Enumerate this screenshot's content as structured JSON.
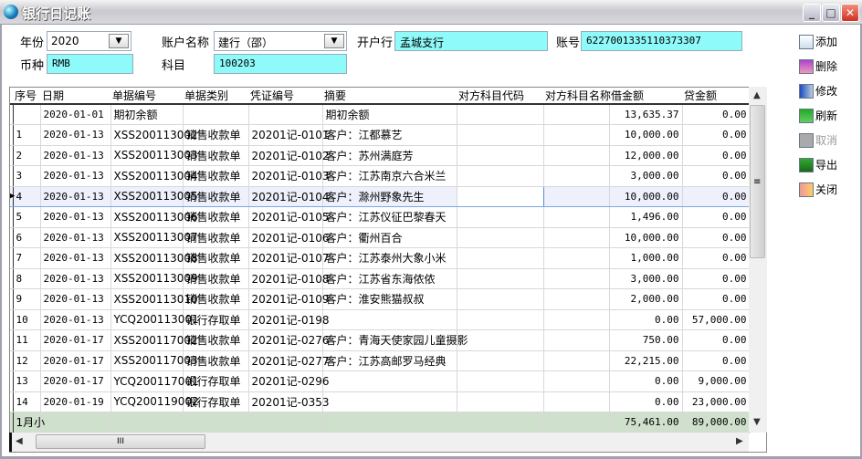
{
  "window": {
    "title": "银行日记账",
    "min_icon": "minimize-icon",
    "max_icon": "maximize-icon",
    "close_icon": "close-icon"
  },
  "form": {
    "year_label": "年份",
    "year_value": "2020",
    "account_name_label": "账户名称",
    "account_name_value": "建行（邵）",
    "bank_label": "开户行",
    "bank_value": "孟城支行",
    "account_no_label": "账号",
    "account_no_value": "6227001335110373307",
    "currency_label": "币种",
    "currency_value": "RMB",
    "subject_label": "科目",
    "subject_value": "100203"
  },
  "toolbar": [
    {
      "label": "添加",
      "icon": "document-add-icon",
      "enabled": true
    },
    {
      "label": "删除",
      "icon": "delete-hand-icon",
      "enabled": true
    },
    {
      "label": "修改",
      "icon": "edit-icon",
      "enabled": true
    },
    {
      "label": "刷新",
      "icon": "refresh-icon",
      "enabled": true
    },
    {
      "label": "取消",
      "icon": "cancel-icon",
      "enabled": false
    },
    {
      "label": "导出",
      "icon": "excel-export-icon",
      "enabled": true
    },
    {
      "label": "关闭",
      "icon": "exit-door-icon",
      "enabled": true
    }
  ],
  "grid": {
    "columns": [
      "序号",
      "日期",
      "单据编号",
      "单据类别",
      "凭证编号",
      "摘要",
      "对方科目代码",
      "对方科目名称",
      "借金额",
      "贷金额"
    ],
    "rows": [
      [
        "",
        "2020-01-01",
        "期初余额",
        "",
        "",
        "期初余额",
        "",
        "",
        "13,635.37",
        "0.00"
      ],
      [
        "1",
        "2020-01-13",
        "XSS200113002",
        "销售收款单",
        "20201记-0101",
        "客户：江都慕艺",
        "",
        "",
        "10,000.00",
        "0.00"
      ],
      [
        "2",
        "2020-01-13",
        "XSS200113003",
        "销售收款单",
        "20201记-0102",
        "客户：苏州满庭芳",
        "",
        "",
        "12,000.00",
        "0.00"
      ],
      [
        "3",
        "2020-01-13",
        "XSS200113004",
        "销售收款单",
        "20201记-0103",
        "客户：江苏南京六合米兰",
        "",
        "",
        "3,000.00",
        "0.00"
      ],
      [
        "4",
        "2020-01-13",
        "XSS200113005",
        "销售收款单",
        "20201记-0104",
        "客户：滁州野象先生",
        "",
        "",
        "10,000.00",
        "0.00"
      ],
      [
        "5",
        "2020-01-13",
        "XSS200113006",
        "销售收款单",
        "20201记-0105",
        "客户：江苏仪征巴黎春天",
        "",
        "",
        "1,496.00",
        "0.00"
      ],
      [
        "6",
        "2020-01-13",
        "XSS200113007",
        "销售收款单",
        "20201记-0106",
        "客户：衢州百合",
        "",
        "",
        "10,000.00",
        "0.00"
      ],
      [
        "7",
        "2020-01-13",
        "XSS200113008",
        "销售收款单",
        "20201记-0107",
        "客户：江苏泰州大象小米",
        "",
        "",
        "1,000.00",
        "0.00"
      ],
      [
        "8",
        "2020-01-13",
        "XSS200113009",
        "销售收款单",
        "20201记-0108",
        "客户：江苏省东海侬侬",
        "",
        "",
        "3,000.00",
        "0.00"
      ],
      [
        "9",
        "2020-01-13",
        "XSS200113010",
        "销售收款单",
        "20201记-0109",
        "客户：淮安熊猫叔叔",
        "",
        "",
        "2,000.00",
        "0.00"
      ],
      [
        "10",
        "2020-01-13",
        "YCQ200113001",
        "银行存取单",
        "20201记-0198",
        "",
        "",
        "",
        "0.00",
        "57,000.00"
      ],
      [
        "11",
        "2020-01-17",
        "XSS200117002",
        "销售收款单",
        "20201记-0276",
        "客户：青海天使家园儿童摄影",
        "",
        "",
        "750.00",
        "0.00"
      ],
      [
        "12",
        "2020-01-17",
        "XSS200117003",
        "销售收款单",
        "20201记-0277",
        "客户：江苏高邮罗马经典",
        "",
        "",
        "22,215.00",
        "0.00"
      ],
      [
        "13",
        "2020-01-17",
        "YCQ200117001",
        "银行存取单",
        "20201记-0296",
        "",
        "",
        "",
        "0.00",
        "9,000.00"
      ],
      [
        "14",
        "2020-01-19",
        "YCQ200119002",
        "银行存取单",
        "20201记-0353",
        "",
        "",
        "",
        "0.00",
        "23,000.00"
      ]
    ],
    "subtotal": [
      "1月小",
      "",
      "",
      "",
      "",
      "",
      "",
      "",
      "75,461.00",
      "89,000.00"
    ],
    "selected_row": 4,
    "colors": {
      "subtotal_bg": "#cfe0cd",
      "selected_bg": "#eef0fb",
      "field_bg": "#8ffafa"
    }
  }
}
